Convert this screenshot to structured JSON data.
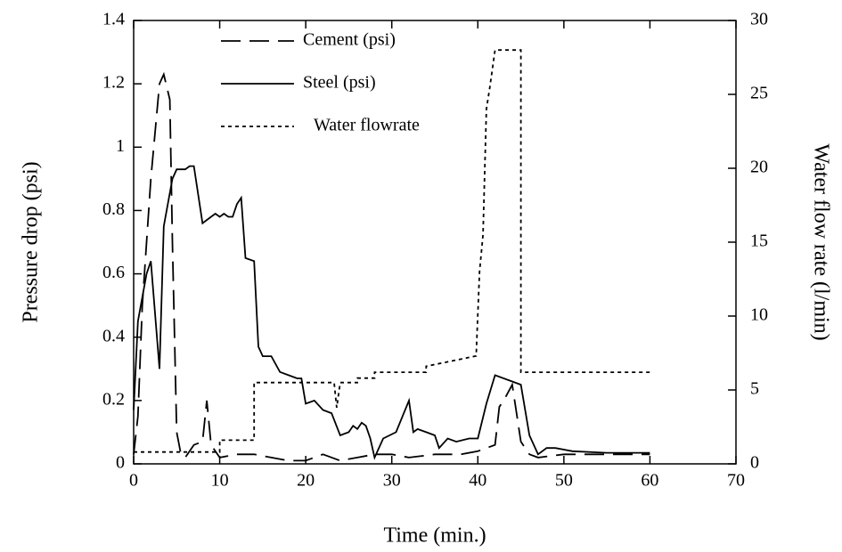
{
  "chart_data": {
    "type": "line",
    "x_label": "Time (min.)",
    "y_label": "Pressure drop (psi)",
    "y2_label": "Water flow rate  (l/min)",
    "xlim": [
      0,
      70
    ],
    "xticks": [
      0,
      10,
      20,
      30,
      40,
      50,
      60,
      70
    ],
    "ylim": [
      0,
      1.4
    ],
    "yticks": [
      0,
      0.2,
      0.4,
      0.6,
      0.8,
      1,
      1.2,
      1.4
    ],
    "y2lim": [
      0,
      30
    ],
    "y2ticks": [
      0,
      5,
      10,
      15,
      20,
      25,
      30
    ],
    "legend": "top-left",
    "series": [
      {
        "name": "Cement (psi)",
        "color": "#000000",
        "dash": "dashed",
        "x": [
          0,
          0.5,
          1,
          2,
          3,
          3.5,
          4.2,
          4.5,
          5,
          5.5,
          6,
          7,
          8,
          8.5,
          9,
          10,
          12,
          14,
          16,
          18,
          20,
          22,
          24,
          26,
          28,
          30,
          32,
          35,
          38,
          40,
          42,
          42.5,
          43,
          44,
          45,
          46,
          47,
          50,
          55,
          60
        ],
        "values": [
          0.03,
          0.15,
          0.5,
          0.9,
          1.2,
          1.23,
          1.15,
          0.7,
          0.1,
          0.03,
          0.02,
          0.06,
          0.07,
          0.2,
          0.06,
          0.02,
          0.03,
          0.03,
          0.02,
          0.01,
          0.01,
          0.03,
          0.01,
          0.02,
          0.03,
          0.03,
          0.02,
          0.03,
          0.03,
          0.04,
          0.06,
          0.18,
          0.2,
          0.25,
          0.07,
          0.03,
          0.02,
          0.03,
          0.03,
          0.03
        ]
      },
      {
        "name": "Steel (psi)",
        "color": "#000000",
        "dash": "solid",
        "x": [
          0,
          0.5,
          1.5,
          2,
          3,
          3.5,
          4.5,
          5,
          6,
          6.5,
          7,
          8,
          9,
          9.5,
          10,
          10.5,
          11,
          11.5,
          12,
          12.5,
          13,
          14,
          14.5,
          15,
          16,
          17,
          18,
          19,
          19.5,
          20,
          21,
          22,
          23,
          24,
          25,
          25.5,
          26,
          26.5,
          27,
          27.5,
          28,
          29,
          30.5,
          32,
          32.5,
          33,
          34,
          35,
          35.5,
          36.5,
          37.5,
          39,
          40,
          41,
          42,
          44,
          45,
          46,
          47,
          48,
          49,
          51,
          55,
          60
        ],
        "values": [
          0.17,
          0.45,
          0.6,
          0.64,
          0.3,
          0.75,
          0.9,
          0.93,
          0.93,
          0.94,
          0.94,
          0.76,
          0.78,
          0.79,
          0.78,
          0.79,
          0.78,
          0.78,
          0.82,
          0.84,
          0.65,
          0.64,
          0.37,
          0.34,
          0.34,
          0.29,
          0.28,
          0.27,
          0.27,
          0.19,
          0.2,
          0.17,
          0.16,
          0.09,
          0.1,
          0.12,
          0.11,
          0.13,
          0.12,
          0.08,
          0.02,
          0.08,
          0.1,
          0.2,
          0.1,
          0.11,
          0.1,
          0.09,
          0.05,
          0.08,
          0.07,
          0.08,
          0.08,
          0.19,
          0.28,
          0.26,
          0.25,
          0.09,
          0.03,
          0.05,
          0.05,
          0.04,
          0.035,
          0.035
        ]
      },
      {
        "name": "Water flowrate",
        "color": "#000000",
        "dash": "dotted",
        "axis": "y2",
        "x": [
          0,
          10,
          10,
          14,
          14,
          23.3,
          23.6,
          24,
          26,
          26,
          28,
          28,
          34,
          34,
          39.8,
          40.2,
          40.6,
          41,
          41.4,
          42,
          44.6,
          45,
          45,
          60
        ],
        "values": [
          0.8,
          0.8,
          1.6,
          1.6,
          5.5,
          5.5,
          3.8,
          5.5,
          5.5,
          5.8,
          5.8,
          6.2,
          6.2,
          6.6,
          7.3,
          13,
          15.5,
          24,
          25.5,
          28,
          28,
          28,
          6.2,
          6.2
        ]
      }
    ]
  }
}
